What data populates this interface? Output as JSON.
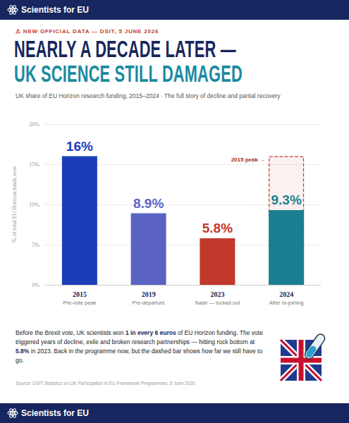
{
  "brand": "Scientists for EU",
  "kicker": "⚠ NEW OFFICIAL DATA — DSIT, 5 JUNE 2026",
  "chart_data": {
    "type": "bar",
    "title": [
      "NEARLY A DECADE LATER —",
      "UK SCIENCE STILL DAMAGED"
    ],
    "subtitle": "UK share of EU Horizon research funding, 2015–2024 · The full story of decline and partial recovery",
    "ylabel": "% of total EU Horizon funds won",
    "categories": [
      "2015",
      "2019",
      "2023",
      "2024"
    ],
    "category_notes": [
      "Pre-vote peak",
      "Pre-departure",
      "Nadir — locked out",
      "After re-joining"
    ],
    "values": [
      16,
      8.9,
      5.8,
      9.3
    ],
    "value_labels": [
      "16%",
      "8.9%",
      "5.8%",
      "9.3%"
    ],
    "colors": [
      "#1d3db8",
      "#5a63c4",
      "#c0392b",
      "#1b7f91"
    ],
    "ylim": [
      0,
      20
    ],
    "yticks": [
      {
        "value": 0,
        "label": "0%"
      },
      {
        "value": 5,
        "label": "5%"
      },
      {
        "value": 10,
        "label": "10%"
      },
      {
        "value": 15,
        "label": "15%"
      },
      {
        "value": 20,
        "label": "20%"
      }
    ],
    "grid": true,
    "data_labels": true,
    "annotations": [
      {
        "text": "2015 peak →",
        "category": "2024",
        "value": 16
      }
    ]
  },
  "body": [
    {
      "text": "Before the Brexit vote, UK scientists won ",
      "bold": false
    },
    {
      "text": "1 in every 6 euros",
      "bold": true
    },
    {
      "text": " of EU Horizon funding. The vote triggered years of decline, exile and broken research partnerships — hitting rock bottom at ",
      "bold": false
    },
    {
      "text": "5.8%",
      "bold": true
    },
    {
      "text": " in 2023. Back in the programme now, but the dashed bar shows how far we still have to go.",
      "bold": false
    }
  ],
  "source": "Source: DSIT Statistics on UK Participation in EU Framework Programmes, 5 June 2026"
}
